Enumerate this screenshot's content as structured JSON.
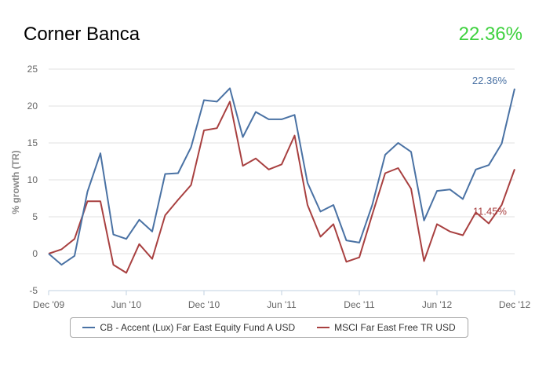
{
  "header": {
    "title": "Corner Banca",
    "value": "22.36%",
    "value_color": "#3ed13e"
  },
  "chart_data": {
    "type": "line",
    "ylabel": "% growth (TR)",
    "ylim": [
      -5,
      25
    ],
    "yticks": [
      -5,
      0,
      5,
      10,
      15,
      20,
      25
    ],
    "xtick_labels": [
      "Dec '09",
      "Jun '10",
      "Dec '10",
      "Jun '11",
      "Dec '11",
      "Jun '12",
      "Dec '12"
    ],
    "xtick_index": [
      0,
      6,
      12,
      18,
      24,
      30,
      36
    ],
    "grid": "horizontal",
    "legend_position": "bottom",
    "series": [
      {
        "name": "CB - Accent (Lux) Far East Equity Fund A USD",
        "color": "#4a72a4",
        "end_label": "22.36%",
        "values": [
          0,
          -1.5,
          -0.3,
          8.4,
          13.6,
          2.6,
          2.0,
          4.6,
          3.0,
          10.8,
          10.9,
          14.4,
          20.8,
          20.6,
          22.4,
          15.8,
          19.2,
          18.2,
          18.2,
          18.8,
          9.6,
          5.7,
          6.6,
          1.8,
          1.5,
          6.6,
          13.4,
          15.0,
          13.8,
          4.5,
          8.5,
          8.7,
          7.4,
          11.4,
          12.0,
          14.9,
          22.36
        ]
      },
      {
        "name": "MSCI Far East Free TR USD",
        "color": "#a84040",
        "end_label": "11.45%",
        "values": [
          0,
          0.6,
          2.0,
          7.1,
          7.1,
          -1.5,
          -2.6,
          1.3,
          -0.7,
          5.2,
          7.3,
          9.3,
          16.7,
          17.0,
          20.6,
          11.9,
          12.9,
          11.4,
          12.1,
          16.0,
          6.6,
          2.3,
          4.0,
          -1.1,
          -0.5,
          5.3,
          10.9,
          11.6,
          8.8,
          -1.0,
          4.0,
          3.0,
          2.5,
          5.6,
          4.1,
          6.6,
          11.45
        ]
      }
    ]
  }
}
